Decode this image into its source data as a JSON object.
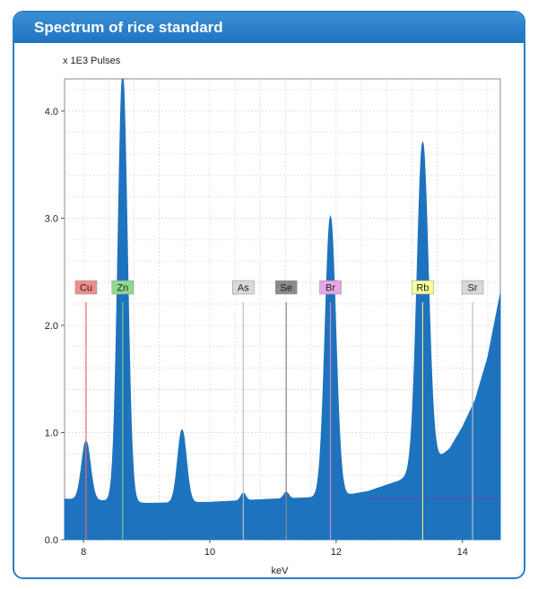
{
  "panel": {
    "title": "Spectrum of rice standard"
  },
  "chart_data": {
    "type": "area",
    "title": "Spectrum of rice standard",
    "ylabel": "x 1E3 Pulses",
    "xlabel": "keV",
    "xlim": [
      7.7,
      14.6
    ],
    "ylim": [
      0,
      4.3
    ],
    "x_ticks": [
      "8",
      "10",
      "12",
      "14"
    ],
    "y_ticks": [
      "0.0",
      "1.0",
      "2.0",
      "3.0",
      "4.0"
    ],
    "grid": true,
    "fill_color": "#1e73be",
    "spectrum": {
      "baseline": [
        [
          7.7,
          0.38
        ],
        [
          8.5,
          0.36
        ],
        [
          9.0,
          0.34
        ],
        [
          10.0,
          0.35
        ],
        [
          11.0,
          0.38
        ],
        [
          12.0,
          0.4
        ],
        [
          12.5,
          0.45
        ],
        [
          13.0,
          0.55
        ],
        [
          13.5,
          0.7
        ],
        [
          13.8,
          0.85
        ],
        [
          14.0,
          1.05
        ],
        [
          14.2,
          1.3
        ],
        [
          14.4,
          1.7
        ],
        [
          14.6,
          2.3
        ]
      ],
      "peaks": [
        {
          "center": 8.04,
          "height": 0.55,
          "width": 0.07
        },
        {
          "center": 8.62,
          "height": 4.0,
          "width": 0.075
        },
        {
          "center": 9.56,
          "height": 0.68,
          "width": 0.07
        },
        {
          "center": 10.53,
          "height": 0.07,
          "width": 0.04
        },
        {
          "center": 11.21,
          "height": 0.06,
          "width": 0.04
        },
        {
          "center": 11.91,
          "height": 2.62,
          "width": 0.085
        },
        {
          "center": 13.37,
          "height": 3.05,
          "width": 0.09
        }
      ]
    },
    "elements": [
      {
        "symbol": "Cu",
        "energy": 8.04,
        "color": "#f08c8c",
        "line_color": "#e36b6b"
      },
      {
        "symbol": "Zn",
        "energy": 8.62,
        "color": "#8fd98f",
        "line_color": "#7ac97a"
      },
      {
        "symbol": "As",
        "energy": 10.53,
        "color": "#d9d9d9",
        "line_color": "#bdbdbd"
      },
      {
        "symbol": "Se",
        "energy": 11.21,
        "color": "#8a8a8a",
        "line_color": "#8a8a8a"
      },
      {
        "symbol": "Br",
        "energy": 11.91,
        "color": "#e6a6e6",
        "line_color": "#c98ac9"
      },
      {
        "symbol": "Rb",
        "energy": 13.37,
        "color": "#ffff99",
        "line_color": "#e6e680"
      },
      {
        "symbol": "Sr",
        "energy": 14.16,
        "color": "#d9d9d9",
        "line_color": "#bdbdbd"
      }
    ],
    "label_level": 2.2
  }
}
